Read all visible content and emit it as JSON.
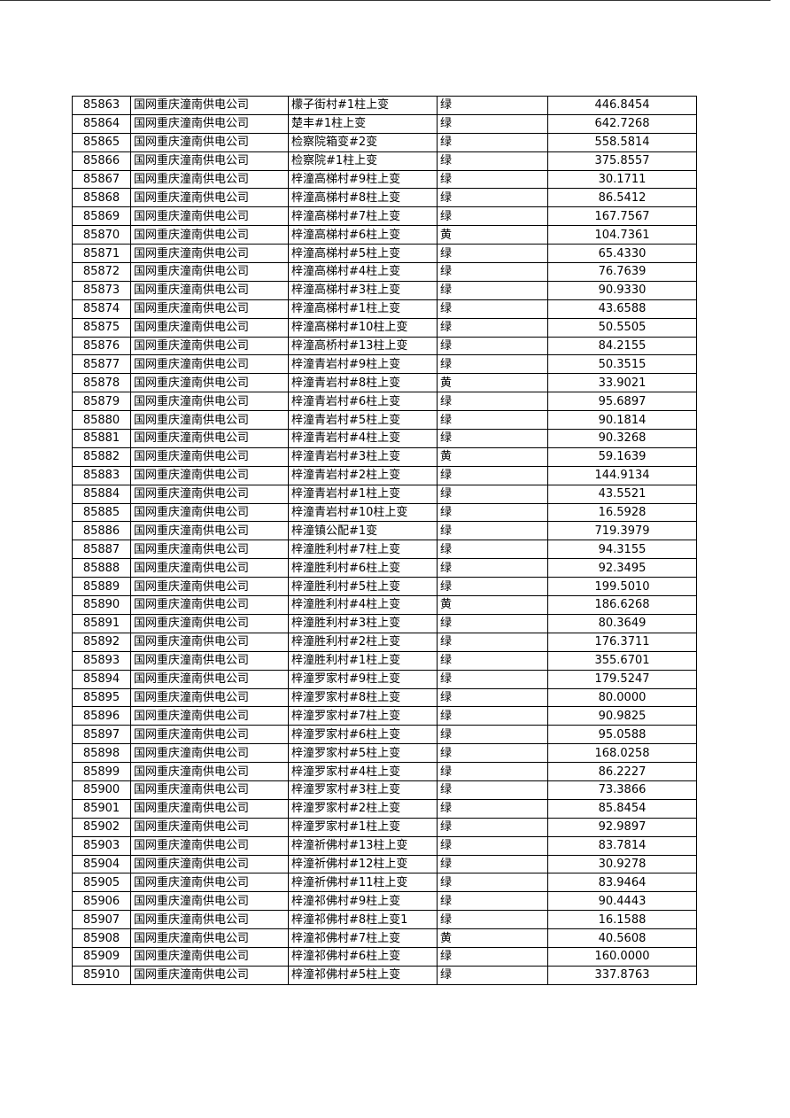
{
  "table": {
    "rows": [
      [
        "85863",
        "国网重庆潼南供电公司",
        "檬子街村#1柱上变",
        "绿",
        "446.8454"
      ],
      [
        "85864",
        "国网重庆潼南供电公司",
        "楚丰#1柱上变",
        "绿",
        "642.7268"
      ],
      [
        "85865",
        "国网重庆潼南供电公司",
        "检察院箱变#2变",
        "绿",
        "558.5814"
      ],
      [
        "85866",
        "国网重庆潼南供电公司",
        "检察院#1柱上变",
        "绿",
        "375.8557"
      ],
      [
        "85867",
        "国网重庆潼南供电公司",
        "梓潼高梯村#9柱上变",
        "绿",
        "30.1711"
      ],
      [
        "85868",
        "国网重庆潼南供电公司",
        "梓潼高梯村#8柱上变",
        "绿",
        "86.5412"
      ],
      [
        "85869",
        "国网重庆潼南供电公司",
        "梓潼高梯村#7柱上变",
        "绿",
        "167.7567"
      ],
      [
        "85870",
        "国网重庆潼南供电公司",
        "梓潼高梯村#6柱上变",
        "黄",
        "104.7361"
      ],
      [
        "85871",
        "国网重庆潼南供电公司",
        "梓潼高梯村#5柱上变",
        "绿",
        "65.4330"
      ],
      [
        "85872",
        "国网重庆潼南供电公司",
        "梓潼高梯村#4柱上变",
        "绿",
        "76.7639"
      ],
      [
        "85873",
        "国网重庆潼南供电公司",
        "梓潼高梯村#3柱上变",
        "绿",
        "90.9330"
      ],
      [
        "85874",
        "国网重庆潼南供电公司",
        "梓潼高梯村#1柱上变",
        "绿",
        "43.6588"
      ],
      [
        "85875",
        "国网重庆潼南供电公司",
        "梓潼高梯村#10柱上变",
        "绿",
        "50.5505"
      ],
      [
        "85876",
        "国网重庆潼南供电公司",
        "梓潼高桥村#13柱上变",
        "绿",
        "84.2155"
      ],
      [
        "85877",
        "国网重庆潼南供电公司",
        "梓潼青岩村#9柱上变",
        "绿",
        "50.3515"
      ],
      [
        "85878",
        "国网重庆潼南供电公司",
        "梓潼青岩村#8柱上变",
        "黄",
        "33.9021"
      ],
      [
        "85879",
        "国网重庆潼南供电公司",
        "梓潼青岩村#6柱上变",
        "绿",
        "95.6897"
      ],
      [
        "85880",
        "国网重庆潼南供电公司",
        "梓潼青岩村#5柱上变",
        "绿",
        "90.1814"
      ],
      [
        "85881",
        "国网重庆潼南供电公司",
        "梓潼青岩村#4柱上变",
        "绿",
        "90.3268"
      ],
      [
        "85882",
        "国网重庆潼南供电公司",
        "梓潼青岩村#3柱上变",
        "黄",
        "59.1639"
      ],
      [
        "85883",
        "国网重庆潼南供电公司",
        "梓潼青岩村#2柱上变",
        "绿",
        "144.9134"
      ],
      [
        "85884",
        "国网重庆潼南供电公司",
        "梓潼青岩村#1柱上变",
        "绿",
        "43.5521"
      ],
      [
        "85885",
        "国网重庆潼南供电公司",
        "梓潼青岩村#10柱上变",
        "绿",
        "16.5928"
      ],
      [
        "85886",
        "国网重庆潼南供电公司",
        "梓潼镇公配#1变",
        "绿",
        "719.3979"
      ],
      [
        "85887",
        "国网重庆潼南供电公司",
        "梓潼胜利村#7柱上变",
        "绿",
        "94.3155"
      ],
      [
        "85888",
        "国网重庆潼南供电公司",
        "梓潼胜利村#6柱上变",
        "绿",
        "92.3495"
      ],
      [
        "85889",
        "国网重庆潼南供电公司",
        "梓潼胜利村#5柱上变",
        "绿",
        "199.5010"
      ],
      [
        "85890",
        "国网重庆潼南供电公司",
        "梓潼胜利村#4柱上变",
        "黄",
        "186.6268"
      ],
      [
        "85891",
        "国网重庆潼南供电公司",
        "梓潼胜利村#3柱上变",
        "绿",
        "80.3649"
      ],
      [
        "85892",
        "国网重庆潼南供电公司",
        "梓潼胜利村#2柱上变",
        "绿",
        "176.3711"
      ],
      [
        "85893",
        "国网重庆潼南供电公司",
        "梓潼胜利村#1柱上变",
        "绿",
        "355.6701"
      ],
      [
        "85894",
        "国网重庆潼南供电公司",
        "梓潼罗家村#9柱上变",
        "绿",
        "179.5247"
      ],
      [
        "85895",
        "国网重庆潼南供电公司",
        "梓潼罗家村#8柱上变",
        "绿",
        "80.0000"
      ],
      [
        "85896",
        "国网重庆潼南供电公司",
        "梓潼罗家村#7柱上变",
        "绿",
        "90.9825"
      ],
      [
        "85897",
        "国网重庆潼南供电公司",
        "梓潼罗家村#6柱上变",
        "绿",
        "95.0588"
      ],
      [
        "85898",
        "国网重庆潼南供电公司",
        "梓潼罗家村#5柱上变",
        "绿",
        "168.0258"
      ],
      [
        "85899",
        "国网重庆潼南供电公司",
        "梓潼罗家村#4柱上变",
        "绿",
        "86.2227"
      ],
      [
        "85900",
        "国网重庆潼南供电公司",
        "梓潼罗家村#3柱上变",
        "绿",
        "73.3866"
      ],
      [
        "85901",
        "国网重庆潼南供电公司",
        "梓潼罗家村#2柱上变",
        "绿",
        "85.8454"
      ],
      [
        "85902",
        "国网重庆潼南供电公司",
        "梓潼罗家村#1柱上变",
        "绿",
        "92.9897"
      ],
      [
        "85903",
        "国网重庆潼南供电公司",
        "梓潼祈佛村#13柱上变",
        "绿",
        "83.7814"
      ],
      [
        "85904",
        "国网重庆潼南供电公司",
        "梓潼祈佛村#12柱上变",
        "绿",
        "30.9278"
      ],
      [
        "85905",
        "国网重庆潼南供电公司",
        "梓潼祈佛村#11柱上变",
        "绿",
        "83.9464"
      ],
      [
        "85906",
        "国网重庆潼南供电公司",
        "梓潼祁佛村#9柱上变",
        "绿",
        "90.4443"
      ],
      [
        "85907",
        "国网重庆潼南供电公司",
        "梓潼祁佛村#8柱上变1",
        "绿",
        "16.1588"
      ],
      [
        "85908",
        "国网重庆潼南供电公司",
        "梓潼祁佛村#7柱上变",
        "黄",
        "40.5608"
      ],
      [
        "85909",
        "国网重庆潼南供电公司",
        "梓潼祁佛村#6柱上变",
        "绿",
        "160.0000"
      ],
      [
        "85910",
        "国网重庆潼南供电公司",
        "梓潼祁佛村#5柱上变",
        "绿",
        "337.8763"
      ]
    ]
  }
}
